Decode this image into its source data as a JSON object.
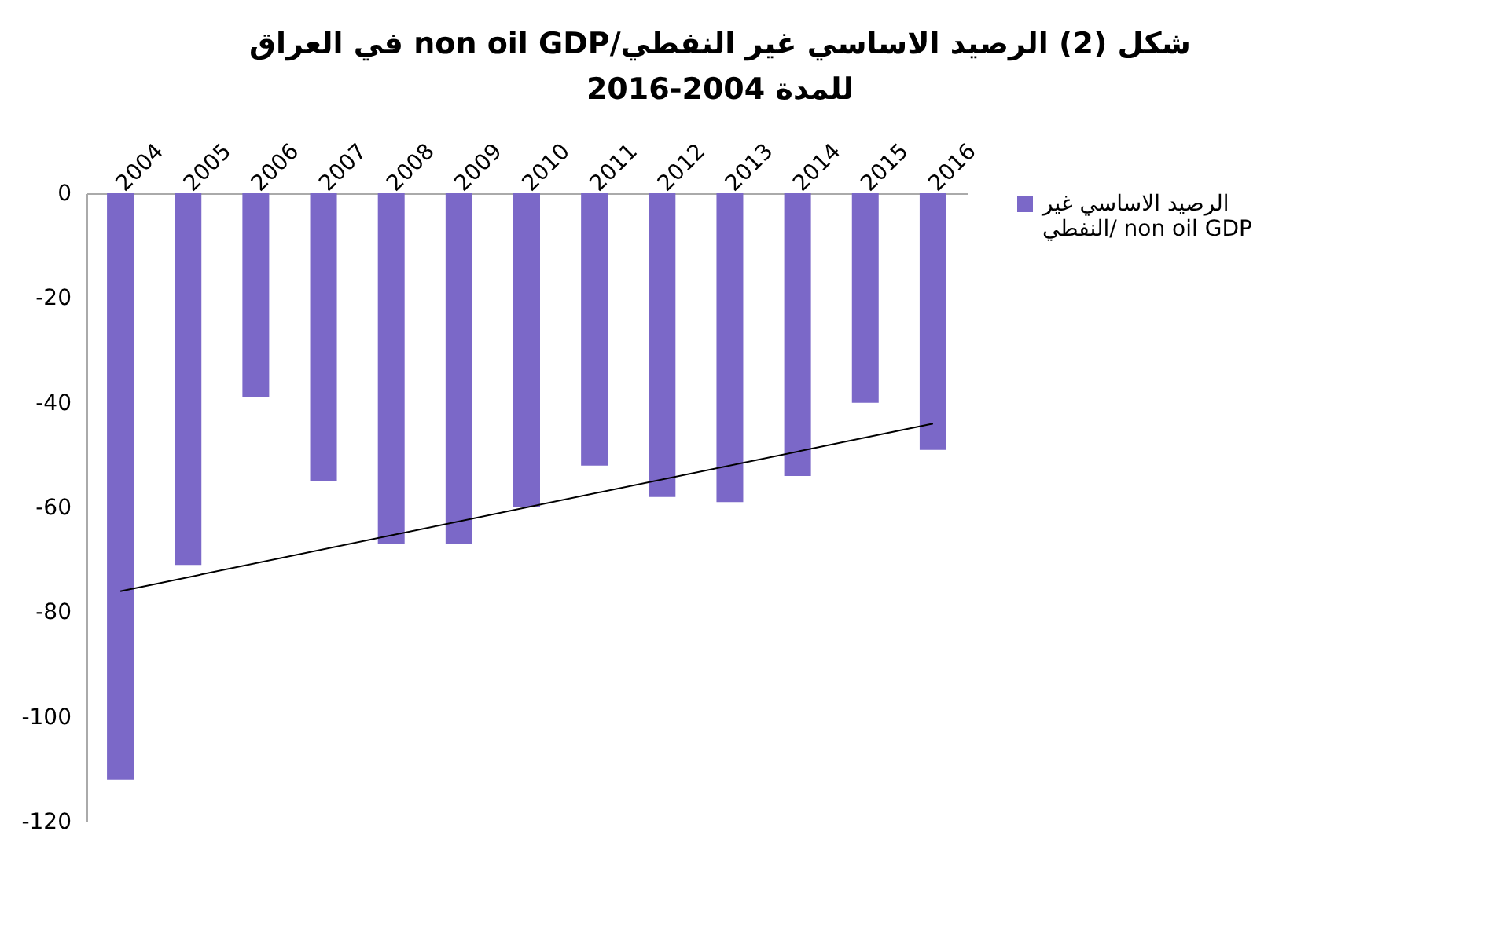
{
  "chart_data": {
    "type": "bar",
    "title": "شكل (2) الرصيد الاساسي غير النفطي/non oil GDP في العراق للمدة 2004-2016",
    "categories": [
      "2004",
      "2005",
      "2006",
      "2007",
      "2008",
      "2009",
      "2010",
      "2011",
      "2012",
      "2013",
      "2014",
      "2015",
      "2016"
    ],
    "series": [
      {
        "name": "الرصيد الاساسي غير النفطي/ non oil GDP",
        "color": "#7b68c8",
        "values": [
          -112,
          -71,
          -39,
          -55,
          -67,
          -67,
          -60,
          -52,
          -58,
          -59,
          -54,
          -40,
          -49
        ]
      },
      {
        "type": "line",
        "color": "#000000",
        "values": [
          -76,
          null,
          null,
          null,
          null,
          null,
          null,
          null,
          null,
          null,
          null,
          null,
          -44
        ]
      }
    ],
    "ylim": [
      -120,
      0
    ],
    "yticks": [
      0,
      -20,
      -40,
      -60,
      -80,
      -100,
      -120
    ],
    "grid": false,
    "legend": "right"
  }
}
